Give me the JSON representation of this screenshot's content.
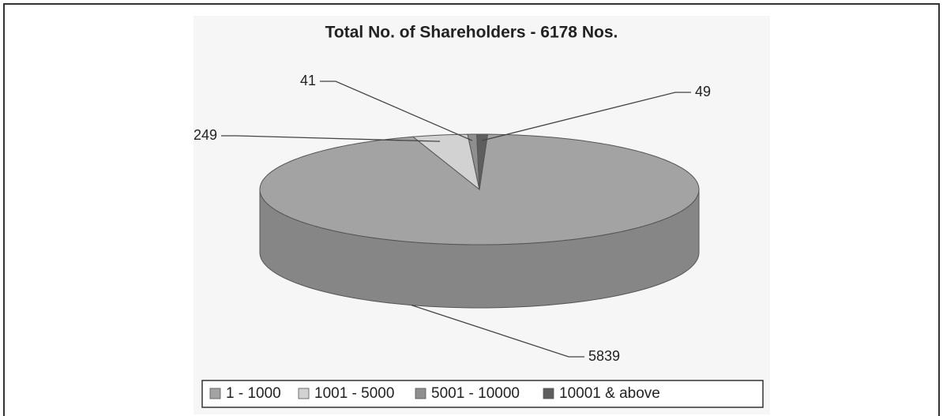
{
  "chart_data": {
    "type": "pie",
    "title": "Total No. of Shareholders - 6178 Nos.",
    "categories": [
      "1 - 1000",
      "1001 - 5000",
      "5001 - 10000",
      "10001 & above"
    ],
    "values": [
      5839,
      249,
      41,
      49
    ],
    "colors": [
      "#a3a3a3",
      "#d2d2d2",
      "#8e8e8e",
      "#5e5e5e"
    ]
  }
}
